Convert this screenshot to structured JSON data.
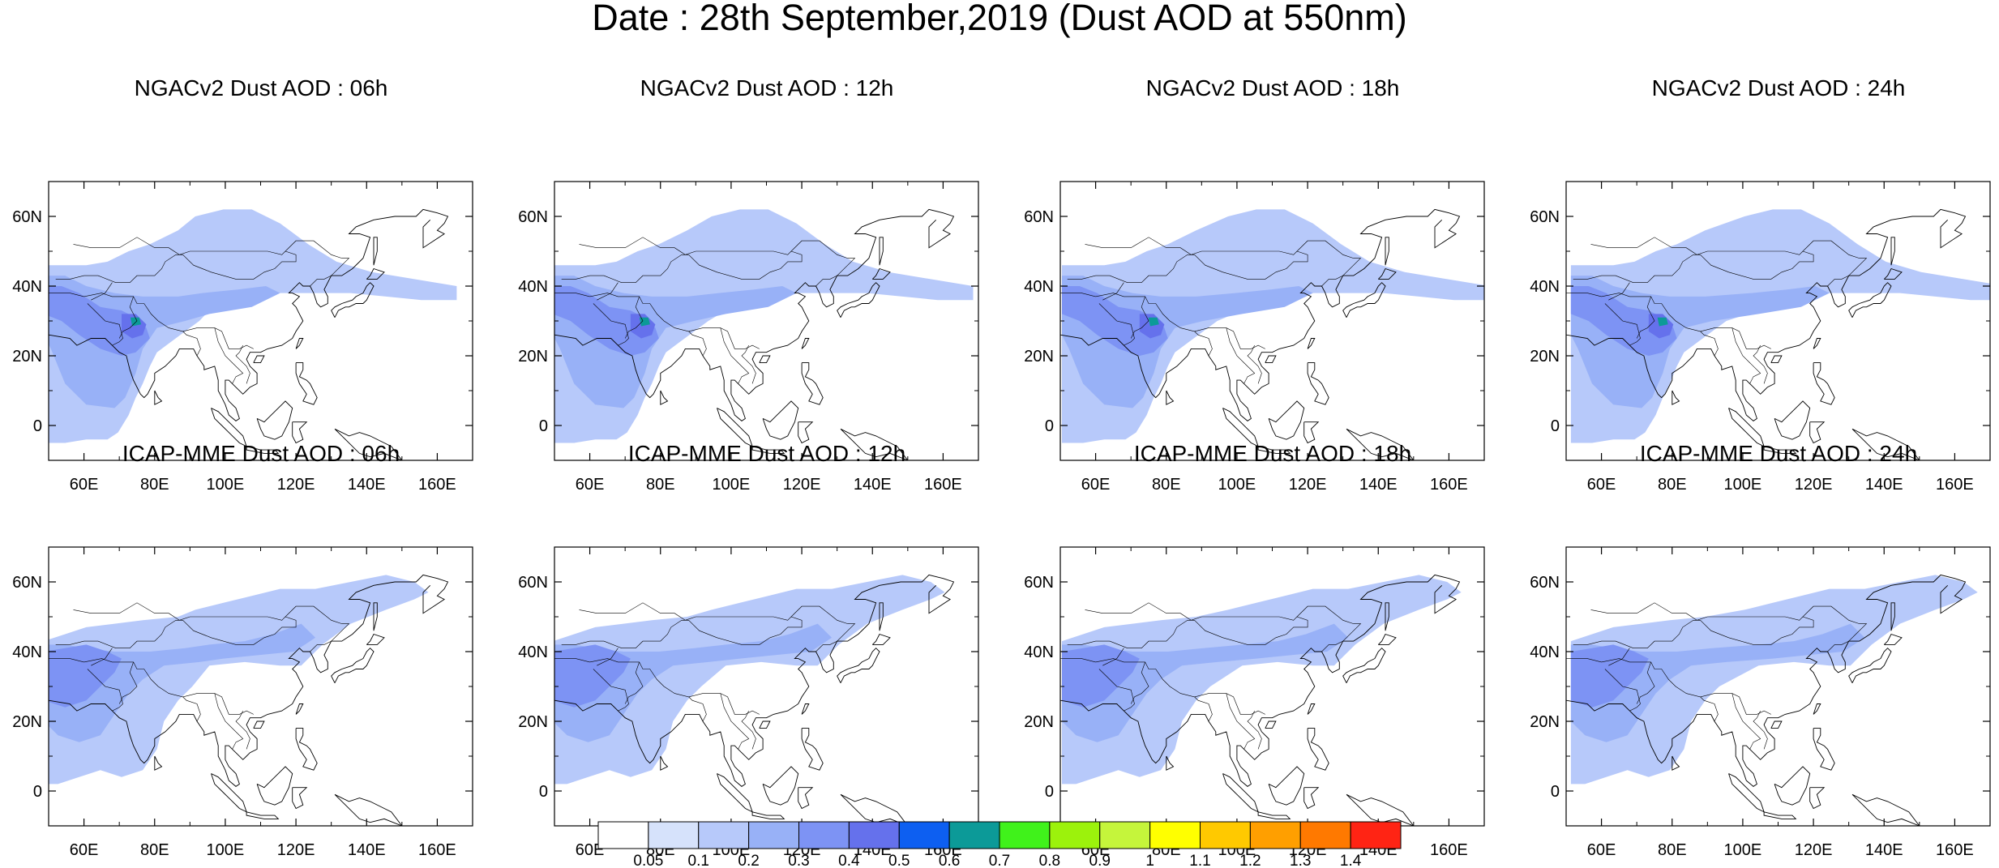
{
  "title": "Date : 28th September,2019 (Dust AOD at 550nm)",
  "panels": [
    {
      "title": "NGACv2 Dust AOD : 06h",
      "model": "NGACv2",
      "hour": "06h"
    },
    {
      "title": "NGACv2 Dust AOD : 12h",
      "model": "NGACv2",
      "hour": "12h"
    },
    {
      "title": "NGACv2 Dust AOD : 18h",
      "model": "NGACv2",
      "hour": "18h"
    },
    {
      "title": "NGACv2 Dust AOD : 24h",
      "model": "NGACv2",
      "hour": "24h"
    },
    {
      "title": "ICAP-MME Dust AOD : 06h",
      "model": "ICAP-MME",
      "hour": "06h"
    },
    {
      "title": "ICAP-MME Dust AOD : 12h",
      "model": "ICAP-MME",
      "hour": "12h"
    },
    {
      "title": "ICAP-MME Dust AOD : 18h",
      "model": "ICAP-MME",
      "hour": "18h"
    },
    {
      "title": "ICAP-MME Dust AOD : 24h",
      "model": "ICAP-MME",
      "hour": "24h"
    }
  ],
  "map": {
    "lon_range": [
      50,
      170
    ],
    "lat_range": [
      -10,
      70
    ],
    "lon_ticks": [
      "60E",
      "80E",
      "100E",
      "120E",
      "140E",
      "160E"
    ],
    "lat_ticks": [
      "60N",
      "40N",
      "20N",
      "0"
    ]
  },
  "colorbar": {
    "levels": [
      "0.05",
      "0.1",
      "0.2",
      "0.3",
      "0.4",
      "0.5",
      "0.6",
      "0.7",
      "0.8",
      "0.9",
      "1",
      "1.1",
      "1.2",
      "1.3",
      "1.4"
    ],
    "colors": [
      "#ffffff",
      "#d6e2fb",
      "#b7c9fa",
      "#98b1f7",
      "#7d93f4",
      "#6571ec",
      "#0d5ff1",
      "#0c9a98",
      "#40f21b",
      "#9cf20c",
      "#c5f53b",
      "#ffff00",
      "#ffc900",
      "#ff9f00",
      "#ff7900",
      "#ff2414"
    ]
  }
}
